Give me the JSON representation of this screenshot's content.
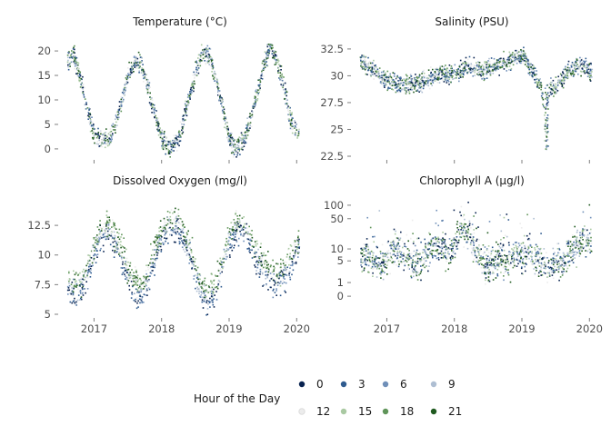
{
  "legend": {
    "title": "Hour of the Day",
    "entries": [
      {
        "label": "0",
        "color": "#08224f"
      },
      {
        "label": "3",
        "color": "#2f5b8f"
      },
      {
        "label": "6",
        "color": "#6f8fb8"
      },
      {
        "label": "9",
        "color": "#aebed2"
      },
      {
        "label": "12",
        "color": "#ececec"
      },
      {
        "label": "15",
        "color": "#a9c9a2"
      },
      {
        "label": "18",
        "color": "#5f9459"
      },
      {
        "label": "21",
        "color": "#1f5a1f"
      }
    ]
  },
  "chart_data": [
    {
      "type": "scatter",
      "title": "Temperature (°C)",
      "x_ticks": [
        "2017",
        "2018",
        "2019",
        "2020"
      ],
      "y_ticks": [
        "0",
        "5",
        "10",
        "15",
        "20"
      ],
      "y_scale": "linear",
      "xlim": [
        2016.55,
        2020.05
      ],
      "ylim": [
        -1.5,
        21.5
      ],
      "series": {
        "x": [
          2016.6,
          2016.7,
          2016.8,
          2016.9,
          2017.0,
          2017.1,
          2017.2,
          2017.3,
          2017.4,
          2017.5,
          2017.6,
          2017.7,
          2017.8,
          2017.9,
          2018.0,
          2018.1,
          2018.2,
          2018.3,
          2018.4,
          2018.5,
          2018.6,
          2018.7,
          2018.8,
          2018.9,
          2019.0,
          2019.1,
          2019.2,
          2019.3,
          2019.4,
          2019.5,
          2019.6,
          2019.7,
          2019.8,
          2019.9,
          2020.0
        ],
        "y": [
          18,
          19,
          14,
          8,
          3,
          2,
          2,
          5,
          10,
          15,
          18,
          17,
          12,
          7,
          2,
          0,
          1,
          5,
          11,
          16,
          20,
          19,
          14,
          8,
          2,
          0,
          2,
          6,
          11,
          17,
          21,
          18,
          13,
          6,
          3
        ]
      }
    },
    {
      "type": "scatter",
      "title": "Salinity (PSU)",
      "x_ticks": [
        "2017",
        "2018",
        "2019",
        "2020"
      ],
      "y_ticks": [
        "22.5",
        "25",
        "27.5",
        "30",
        "32.5"
      ],
      "y_scale": "linear",
      "xlim": [
        2016.55,
        2020.05
      ],
      "ylim": [
        22.5,
        33.0
      ],
      "series": {
        "x": [
          2016.6,
          2016.7,
          2016.8,
          2016.9,
          2017.0,
          2017.1,
          2017.2,
          2017.3,
          2017.4,
          2017.5,
          2017.6,
          2017.7,
          2017.8,
          2017.9,
          2018.0,
          2018.1,
          2018.2,
          2018.3,
          2018.4,
          2018.5,
          2018.6,
          2018.7,
          2018.8,
          2018.9,
          2019.0,
          2019.1,
          2019.2,
          2019.3,
          2019.35,
          2019.4,
          2019.5,
          2019.6,
          2019.7,
          2019.8,
          2019.9,
          2020.0
        ],
        "y": [
          31.5,
          31,
          30.5,
          30,
          29.5,
          29.5,
          29,
          29.2,
          29.5,
          29.5,
          29.8,
          30,
          30.2,
          30,
          30.5,
          30.5,
          31,
          30.8,
          30.5,
          30.8,
          31,
          31.2,
          31.5,
          31.8,
          32,
          31,
          30,
          28.5,
          23.5,
          29,
          29,
          30,
          30.5,
          31,
          31,
          30.5
        ]
      }
    },
    {
      "type": "scatter",
      "title": "Dissolved Oxygen (mg/l)",
      "x_ticks": [
        "2017",
        "2018",
        "2019",
        "2020"
      ],
      "y_ticks": [
        "5",
        "7.5",
        "10",
        "12.5"
      ],
      "y_scale": "linear",
      "xlim": [
        2016.55,
        2020.05
      ],
      "ylim": [
        5.0,
        14.5
      ],
      "series": {
        "x": [
          2016.6,
          2016.7,
          2016.8,
          2016.9,
          2017.0,
          2017.1,
          2017.2,
          2017.3,
          2017.4,
          2017.5,
          2017.6,
          2017.7,
          2017.8,
          2017.9,
          2018.0,
          2018.1,
          2018.2,
          2018.3,
          2018.4,
          2018.5,
          2018.6,
          2018.7,
          2018.8,
          2018.9,
          2019.0,
          2019.1,
          2019.2,
          2019.3,
          2019.4,
          2019.5,
          2019.6,
          2019.7,
          2019.8,
          2019.9,
          2020.0
        ],
        "y": [
          8,
          7,
          7.5,
          9,
          10.5,
          12,
          12.5,
          11.5,
          10,
          8.5,
          7.5,
          7,
          8.5,
          10.5,
          12,
          12.5,
          13,
          12,
          10.5,
          8.5,
          7,
          6.5,
          7.5,
          9.5,
          11.5,
          12.5,
          12.5,
          11.5,
          10,
          9,
          8.5,
          8,
          8.5,
          9.5,
          11
        ]
      }
    },
    {
      "type": "scatter",
      "title": "Chlorophyll A (µg/l)",
      "x_ticks": [
        "2017",
        "2018",
        "2019",
        "2020"
      ],
      "y_ticks": [
        "0",
        "1",
        "5",
        "10",
        "50",
        "100"
      ],
      "y_scale": "log1p",
      "xlim": [
        2016.55,
        2020.05
      ],
      "ylim": [
        -0.6,
        120
      ],
      "series": {
        "x": [
          2016.6,
          2016.7,
          2016.8,
          2016.9,
          2017.0,
          2017.1,
          2017.2,
          2017.3,
          2017.4,
          2017.5,
          2017.6,
          2017.7,
          2017.8,
          2017.9,
          2018.0,
          2018.1,
          2018.2,
          2018.3,
          2018.4,
          2018.5,
          2018.6,
          2018.7,
          2018.8,
          2018.9,
          2019.0,
          2019.1,
          2019.2,
          2019.3,
          2019.4,
          2019.5,
          2019.6,
          2019.7,
          2019.8,
          2019.9,
          2020.0
        ],
        "y": [
          6,
          8,
          5,
          4,
          6,
          10,
          8,
          5,
          4,
          5,
          8,
          15,
          10,
          8,
          12,
          30,
          25,
          8,
          5,
          4,
          5,
          6,
          5,
          8,
          6,
          10,
          6,
          4,
          3,
          5,
          4,
          8,
          12,
          20,
          15
        ]
      }
    }
  ]
}
